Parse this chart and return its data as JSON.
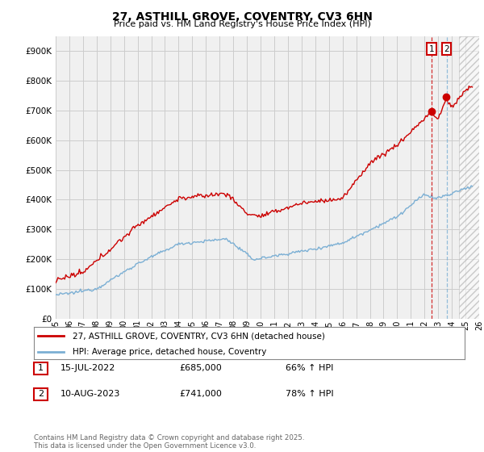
{
  "title": "27, ASTHILL GROVE, COVENTRY, CV3 6HN",
  "subtitle": "Price paid vs. HM Land Registry's House Price Index (HPI)",
  "legend_line1": "27, ASTHILL GROVE, COVENTRY, CV3 6HN (detached house)",
  "legend_line2": "HPI: Average price, detached house, Coventry",
  "footnote": "Contains HM Land Registry data © Crown copyright and database right 2025.\nThis data is licensed under the Open Government Licence v3.0.",
  "table": [
    {
      "num": "1",
      "date": "15-JUL-2022",
      "price": "£685,000",
      "hpi": "66% ↑ HPI"
    },
    {
      "num": "2",
      "date": "10-AUG-2023",
      "price": "£741,000",
      "hpi": "78% ↑ HPI"
    }
  ],
  "marker1_year": 2022.54,
  "marker2_year": 2023.61,
  "marker1_price_red": 685000,
  "marker2_price_red": 741000,
  "red_color": "#cc0000",
  "blue_color": "#7bafd4",
  "grid_color": "#cccccc",
  "background_color": "#f0f0f0",
  "ylim": [
    0,
    950000
  ],
  "xlim_start": 1995,
  "xlim_end": 2026,
  "hatch_start": 2024.5
}
